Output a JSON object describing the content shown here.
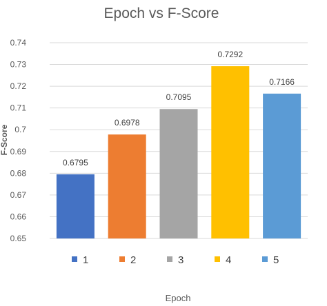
{
  "chart_data": {
    "type": "bar",
    "title": "Epoch vs F-Score",
    "xlabel": "Epoch",
    "ylabel": "F-Score",
    "categories": [
      "1",
      "2",
      "3",
      "4",
      "5"
    ],
    "values": [
      0.6795,
      0.6978,
      0.7095,
      0.7292,
      0.7166
    ],
    "data_labels": [
      "0.6795",
      "0.6978",
      "0.7095",
      "0.7292",
      "0.7166"
    ],
    "colors": [
      "#4472c4",
      "#ed7d31",
      "#a5a5a5",
      "#ffc000",
      "#5b9bd5"
    ],
    "ylim": [
      0.65,
      0.74
    ],
    "yticks": [
      "0.65",
      "0.66",
      "0.67",
      "0.68",
      "0.69",
      "0.7",
      "0.71",
      "0.72",
      "0.73",
      "0.74"
    ],
    "grid": true,
    "legend": {
      "position": "bottom",
      "entries": [
        "1",
        "2",
        "3",
        "4",
        "5"
      ]
    }
  }
}
